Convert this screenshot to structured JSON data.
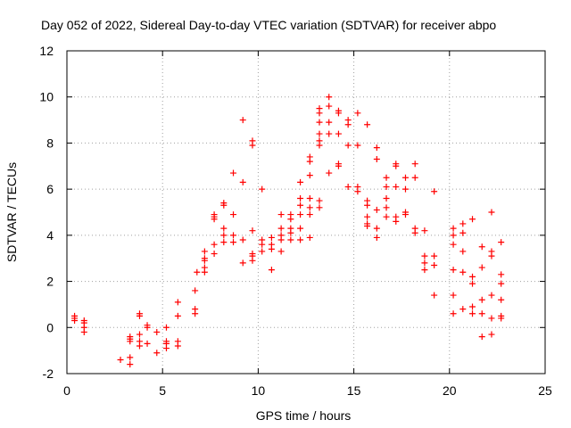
{
  "chart_data": {
    "type": "scatter",
    "title": "Day 052 of 2022, Sidereal Day-to-day VTEC variation (SDTVAR) for receiver abpo",
    "xlabel": "GPS time / hours",
    "ylabel": "SDTVAR / TECUs",
    "xlim": [
      0,
      25
    ],
    "ylim": [
      -2,
      12
    ],
    "xticks": [
      "0",
      "5",
      "10",
      "15",
      "20",
      "25"
    ],
    "yticks": [
      "-2",
      "0",
      "2",
      "4",
      "6",
      "8",
      "10",
      "12"
    ],
    "grid": true,
    "marker": "plus",
    "color": "#ff0000",
    "series": [
      {
        "name": "SDTVAR",
        "x": [
          0.4,
          0.4,
          0.4,
          0.9,
          0.9,
          0.9,
          0.9,
          2.8,
          3.3,
          3.3,
          3.3,
          3.3,
          3.3,
          3.8,
          3.8,
          3.8,
          3.8,
          3.8,
          4.2,
          4.2,
          4.2,
          4.7,
          4.7,
          5.2,
          5.2,
          5.2,
          5.2,
          5.8,
          5.8,
          5.8,
          5.8,
          6.7,
          6.7,
          6.7,
          6.8,
          7.2,
          7.2,
          7.2,
          7.2,
          7.2,
          7.7,
          7.7,
          7.7,
          7.7,
          7.7,
          8.2,
          8.2,
          8.2,
          8.2,
          8.2,
          8.7,
          8.7,
          8.7,
          8.7,
          9.2,
          9.2,
          9.2,
          9.2,
          9.7,
          9.7,
          9.7,
          9.7,
          9.7,
          9.7,
          10.2,
          10.2,
          10.2,
          10.2,
          10.7,
          10.7,
          10.7,
          10.7,
          11.2,
          11.2,
          11.2,
          11.2,
          11.2,
          11.7,
          11.7,
          11.7,
          11.7,
          11.7,
          12.2,
          12.2,
          12.2,
          12.2,
          12.2,
          12.2,
          12.7,
          12.7,
          12.7,
          12.7,
          12.7,
          12.7,
          12.7,
          13.2,
          13.2,
          13.2,
          13.2,
          13.2,
          13.2,
          13.2,
          13.2,
          13.7,
          13.7,
          13.7,
          13.7,
          13.7,
          14.2,
          14.2,
          14.2,
          14.2,
          14.2,
          14.7,
          14.7,
          14.7,
          14.7,
          15.2,
          15.2,
          15.2,
          15.2,
          15.7,
          15.7,
          15.7,
          15.7,
          15.7,
          15.7,
          16.2,
          16.2,
          16.2,
          16.2,
          16.2,
          16.7,
          16.7,
          16.7,
          16.7,
          16.7,
          17.2,
          17.2,
          17.2,
          17.2,
          17.2,
          17.7,
          17.7,
          17.7,
          17.7,
          18.2,
          18.2,
          18.2,
          18.2,
          18.7,
          18.7,
          18.7,
          18.7,
          19.2,
          19.2,
          19.2,
          19.2,
          20.2,
          20.2,
          20.2,
          20.2,
          20.2,
          20.2,
          20.7,
          20.7,
          20.7,
          20.7,
          20.7,
          21.2,
          21.2,
          21.2,
          21.2,
          21.2,
          21.7,
          21.7,
          21.7,
          21.7,
          21.7,
          22.2,
          22.2,
          22.2,
          22.2,
          22.2,
          22.2,
          22.7,
          22.7,
          22.7,
          22.7,
          22.7,
          22.7
        ],
        "y": [
          0.5,
          0.4,
          0.3,
          0.3,
          0.2,
          0.0,
          -0.2,
          -1.4,
          -1.6,
          -1.3,
          -0.6,
          -0.5,
          -0.4,
          -0.8,
          -0.6,
          -0.3,
          0.5,
          0.6,
          -0.7,
          0.1,
          0.0,
          -1.1,
          -0.2,
          -0.9,
          -0.7,
          -0.6,
          0.0,
          -0.8,
          -0.6,
          0.5,
          1.1,
          0.6,
          0.8,
          1.6,
          2.4,
          2.4,
          2.6,
          2.9,
          3.0,
          3.3,
          3.2,
          3.6,
          4.7,
          4.8,
          4.9,
          3.7,
          4.0,
          4.3,
          5.3,
          5.4,
          3.7,
          4.0,
          4.9,
          6.7,
          2.8,
          3.8,
          6.3,
          9.0,
          2.9,
          3.1,
          3.2,
          4.2,
          7.9,
          8.1,
          3.3,
          3.6,
          3.8,
          6.0,
          2.5,
          3.4,
          3.6,
          3.9,
          3.3,
          3.8,
          4.0,
          4.3,
          4.9,
          3.8,
          4.1,
          4.3,
          4.7,
          4.9,
          3.8,
          4.3,
          4.9,
          5.3,
          5.6,
          6.3,
          3.9,
          4.9,
          5.2,
          5.6,
          6.6,
          7.2,
          7.4,
          5.2,
          5.5,
          7.9,
          8.1,
          8.4,
          8.9,
          9.3,
          9.5,
          6.7,
          8.4,
          8.9,
          9.6,
          10.0,
          7.0,
          7.1,
          8.4,
          9.3,
          9.4,
          6.1,
          7.9,
          8.8,
          9.0,
          5.9,
          6.1,
          7.9,
          9.3,
          4.4,
          4.5,
          4.8,
          5.3,
          5.5,
          8.8,
          3.9,
          4.3,
          5.1,
          7.3,
          7.8,
          4.8,
          5.2,
          5.6,
          6.1,
          6.5,
          4.6,
          4.8,
          6.1,
          7.0,
          7.1,
          4.9,
          5.0,
          6.0,
          6.5,
          4.1,
          4.3,
          6.5,
          7.1,
          2.5,
          2.8,
          3.1,
          4.2,
          1.4,
          2.7,
          3.1,
          5.9,
          0.6,
          1.4,
          2.5,
          3.6,
          4.0,
          4.3,
          0.8,
          2.4,
          3.3,
          4.1,
          4.5,
          0.6,
          0.9,
          1.9,
          2.2,
          4.7,
          -0.4,
          0.6,
          1.2,
          2.6,
          3.5,
          -0.3,
          0.4,
          1.4,
          3.1,
          3.3,
          5.0,
          0.4,
          0.5,
          1.2,
          1.9,
          3.7,
          2.3
        ]
      }
    ]
  }
}
